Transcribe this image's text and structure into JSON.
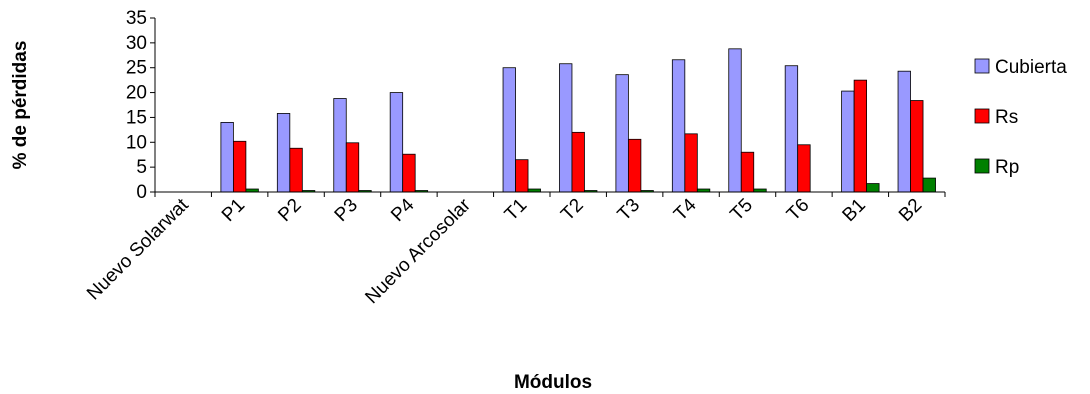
{
  "chart_data": {
    "type": "bar",
    "xlabel": "Módulos",
    "ylabel": "% de pérdidas",
    "ylim": [
      0,
      35
    ],
    "yticks": [
      0,
      5,
      10,
      15,
      20,
      25,
      30,
      35
    ],
    "grid": false,
    "legend_position": "right",
    "categories": [
      "Nuevo Solarwat",
      "P1",
      "P2",
      "P3",
      "P4",
      "Nuevo Arcosolar",
      "T1",
      "T2",
      "T3",
      "T4",
      "T5",
      "T6",
      "B1",
      "B2"
    ],
    "series": [
      {
        "name": "Cubierta",
        "color": "#9999ff",
        "values": [
          0,
          14.0,
          15.8,
          18.8,
          20.0,
          0,
          25.0,
          25.8,
          23.6,
          26.6,
          28.8,
          25.4,
          20.3,
          24.3
        ]
      },
      {
        "name": "Rs",
        "color": "#ff0000",
        "values": [
          0,
          10.2,
          8.8,
          9.9,
          7.6,
          0,
          6.5,
          12.0,
          10.6,
          11.7,
          8.0,
          9.5,
          22.5,
          18.4
        ]
      },
      {
        "name": "Rp",
        "color": "#008000",
        "values": [
          0,
          0.6,
          0.3,
          0.3,
          0.3,
          0,
          0.6,
          0.3,
          0.3,
          0.6,
          0.6,
          0,
          1.7,
          2.8
        ]
      }
    ]
  }
}
